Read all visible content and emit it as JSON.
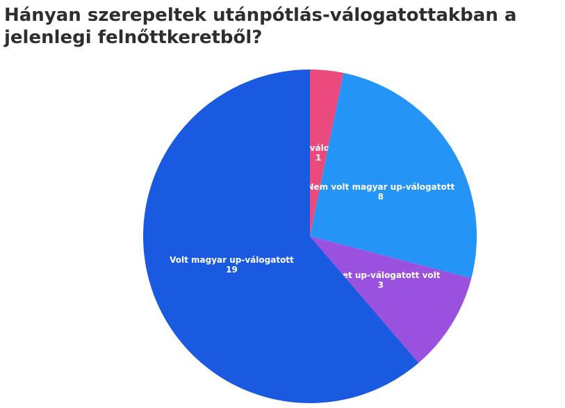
{
  "chart_data": {
    "type": "pie",
    "title": "Hányan szerepeltek utánpótlás-válogatottakban a jelenlegi felnőttkeretből?",
    "categories": [
      "Francia up-válogatott volt",
      "Nem volt magyar up-válogatott",
      "Német up-válogatott volt",
      "Volt magyar up-válogatott"
    ],
    "values": [
      1,
      8,
      3,
      19
    ],
    "colors": [
      "#ea4a7e",
      "#2495f7",
      "#9a52de",
      "#1a5ae0"
    ]
  }
}
